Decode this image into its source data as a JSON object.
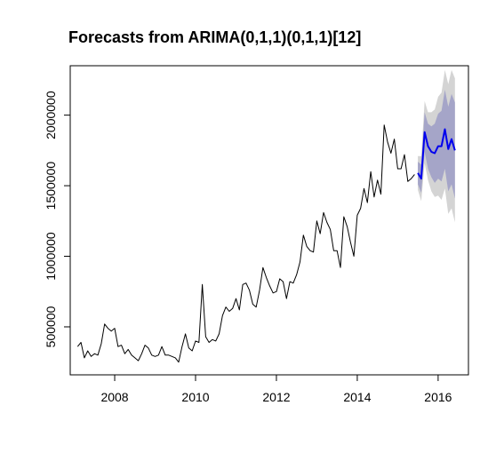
{
  "chart_data": {
    "type": "line",
    "title": "Forecasts from ARIMA(0,1,1)(0,1,1)[12]",
    "xlabel": "",
    "ylabel": "",
    "xlim": [
      2006.9,
      2016.75
    ],
    "ylim": [
      160000,
      2350000
    ],
    "x_ticks": [
      2008,
      2010,
      2012,
      2014,
      2016
    ],
    "x_tick_labels": [
      "2008",
      "2010",
      "2012",
      "2014",
      "2016"
    ],
    "y_ticks": [
      500000,
      1000000,
      1500000,
      2000000
    ],
    "y_tick_labels": [
      "500000",
      "1000000",
      "1500000",
      "2000000"
    ],
    "grid": false,
    "legend": "none",
    "series": [
      {
        "start": 2007.0833,
        "frequency": 12,
        "color": "#000000",
        "values": [
          360000,
          390000,
          280000,
          330000,
          290000,
          310000,
          300000,
          380000,
          520000,
          490000,
          470000,
          490000,
          360000,
          370000,
          310000,
          340000,
          300000,
          280000,
          260000,
          310000,
          370000,
          350000,
          300000,
          290000,
          300000,
          360000,
          300000,
          300000,
          290000,
          280000,
          250000,
          360000,
          450000,
          350000,
          330000,
          400000,
          390000,
          800000,
          430000,
          390000,
          410000,
          400000,
          450000,
          580000,
          640000,
          610000,
          630000,
          700000,
          620000,
          800000,
          810000,
          760000,
          660000,
          640000,
          760000,
          920000,
          850000,
          790000,
          740000,
          750000,
          840000,
          820000,
          700000,
          820000,
          810000,
          870000,
          960000,
          1150000,
          1070000,
          1040000,
          1030000,
          1250000,
          1160000,
          1310000,
          1240000,
          1190000,
          1040000,
          1040000,
          920000,
          1280000,
          1210000,
          1100000,
          1000000,
          1290000,
          1340000,
          1480000,
          1380000,
          1600000,
          1420000,
          1540000,
          1440000,
          1930000,
          1810000,
          1730000,
          1830000,
          1620000,
          1620000,
          1720000,
          1530000,
          1550000,
          1580000
        ]
      },
      {
        "start": 2015.5,
        "frequency": 12,
        "color": "#0000ee",
        "values": [
          1590000,
          1550000,
          1880000,
          1780000,
          1740000,
          1730000,
          1780000,
          1780000,
          1900000,
          1760000,
          1830000,
          1750000
        ]
      }
    ],
    "intervals": {
      "start": 2015.5,
      "frequency": 12,
      "inner_color": "#a5a5c8",
      "outer_color": "#d4d4d4",
      "lo80": [
        1510000,
        1450000,
        1740000,
        1620000,
        1560000,
        1520000,
        1550000,
        1530000,
        1620000,
        1460000,
        1510000,
        1410000
      ],
      "hi80": [
        1670000,
        1650000,
        2020000,
        1940000,
        1920000,
        1940000,
        2010000,
        2030000,
        2180000,
        2060000,
        2150000,
        2090000
      ],
      "lo95": [
        1470000,
        1390000,
        1660000,
        1540000,
        1460000,
        1420000,
        1430000,
        1400000,
        1480000,
        1300000,
        1340000,
        1240000
      ],
      "hi95": [
        1710000,
        1710000,
        2100000,
        2020000,
        2020000,
        2040000,
        2130000,
        2160000,
        2320000,
        2220000,
        2320000,
        2260000
      ]
    }
  }
}
